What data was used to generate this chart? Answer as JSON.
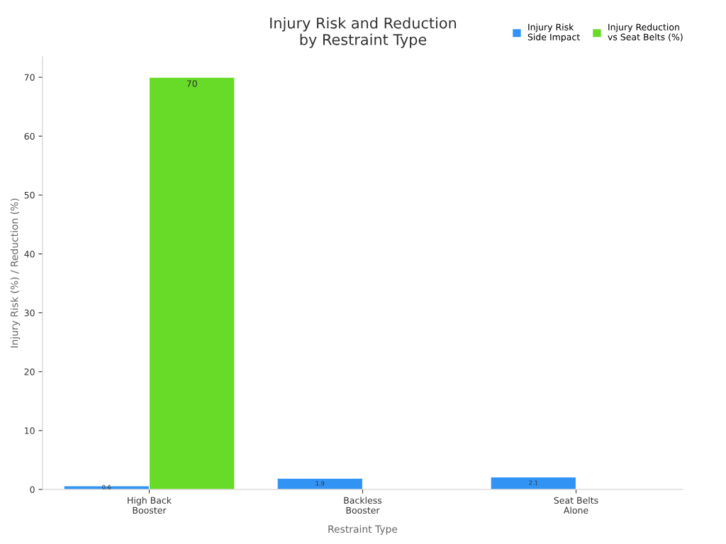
{
  "chart_data": {
    "type": "bar",
    "title": "Injury Risk and Reduction\nby Restraint Type",
    "xlabel": "Restraint Type",
    "ylabel": "Injury Risk (%) / Reduction (%)",
    "categories": [
      "High Back\nBooster",
      "Backless\nBooster",
      "Seat Belts\nAlone"
    ],
    "series": [
      {
        "name": "Injury Risk\nSide Impact",
        "color": "#3194f5",
        "values": [
          0.6,
          1.9,
          2.1
        ],
        "value_labels": [
          "0.6",
          "1.9",
          "2.1"
        ]
      },
      {
        "name": "Injury Reduction\nvs Seat Belts (%)",
        "color": "#67db27",
        "values": [
          70,
          null,
          null
        ],
        "value_labels": [
          "70",
          null,
          null
        ]
      }
    ],
    "ylim": [
      0,
      73.5
    ],
    "yticks": [
      0,
      10,
      20,
      30,
      40,
      50,
      60,
      70
    ],
    "grid": false,
    "legend": "top right"
  }
}
